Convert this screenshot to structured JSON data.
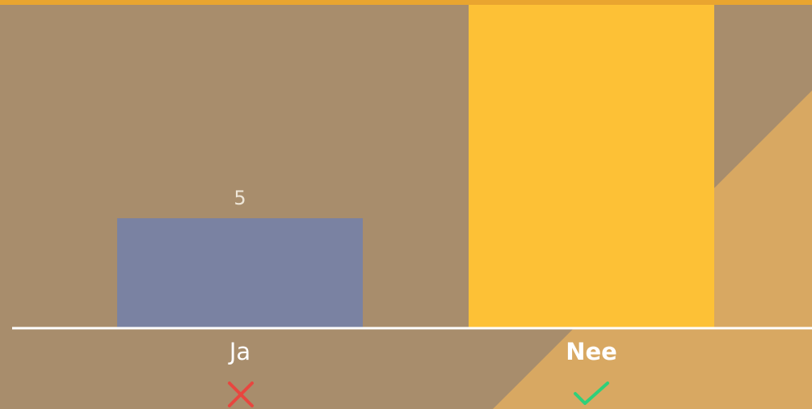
{
  "chart_data": {
    "type": "bar",
    "categories": [
      "Ja",
      "Nee"
    ],
    "values": [
      5,
      15
    ],
    "colors": [
      "#7a82a2",
      "#fdc136"
    ]
  }
}
